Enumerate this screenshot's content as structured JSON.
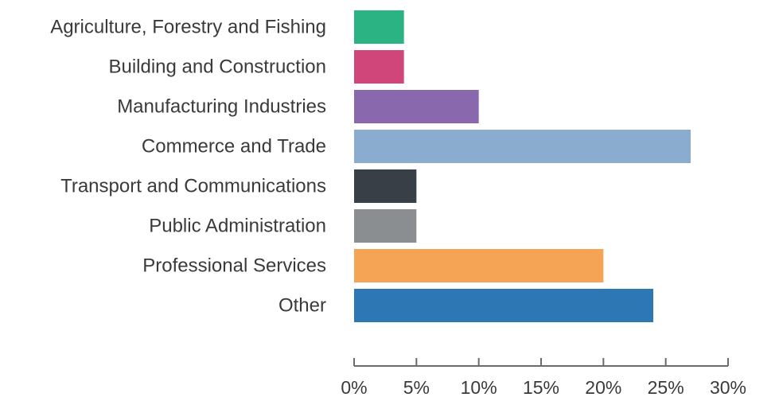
{
  "chart_data": {
    "type": "bar",
    "orientation": "horizontal",
    "title": "",
    "xlabel": "",
    "ylabel": "",
    "categories": [
      "Agriculture, Forestry and Fishing",
      "Building and Construction",
      "Manufacturing Industries",
      "Commerce and Trade",
      "Transport and Communications",
      "Public Administration",
      "Professional Services",
      "Other"
    ],
    "values": [
      4,
      4,
      10,
      27,
      5,
      5,
      20,
      24
    ],
    "colors": [
      "#2bb384",
      "#d0467a",
      "#8a68ad",
      "#8aacce",
      "#393f47",
      "#8b8e91",
      "#f5a455",
      "#2d78b4"
    ],
    "xlim": [
      0,
      30
    ],
    "x_ticks": [
      0,
      5,
      10,
      15,
      20,
      25,
      30
    ],
    "x_tick_labels": [
      "0%",
      "5%",
      "10%",
      "15%",
      "20%",
      "25%",
      "30%"
    ],
    "grid": false,
    "legend": "none"
  }
}
